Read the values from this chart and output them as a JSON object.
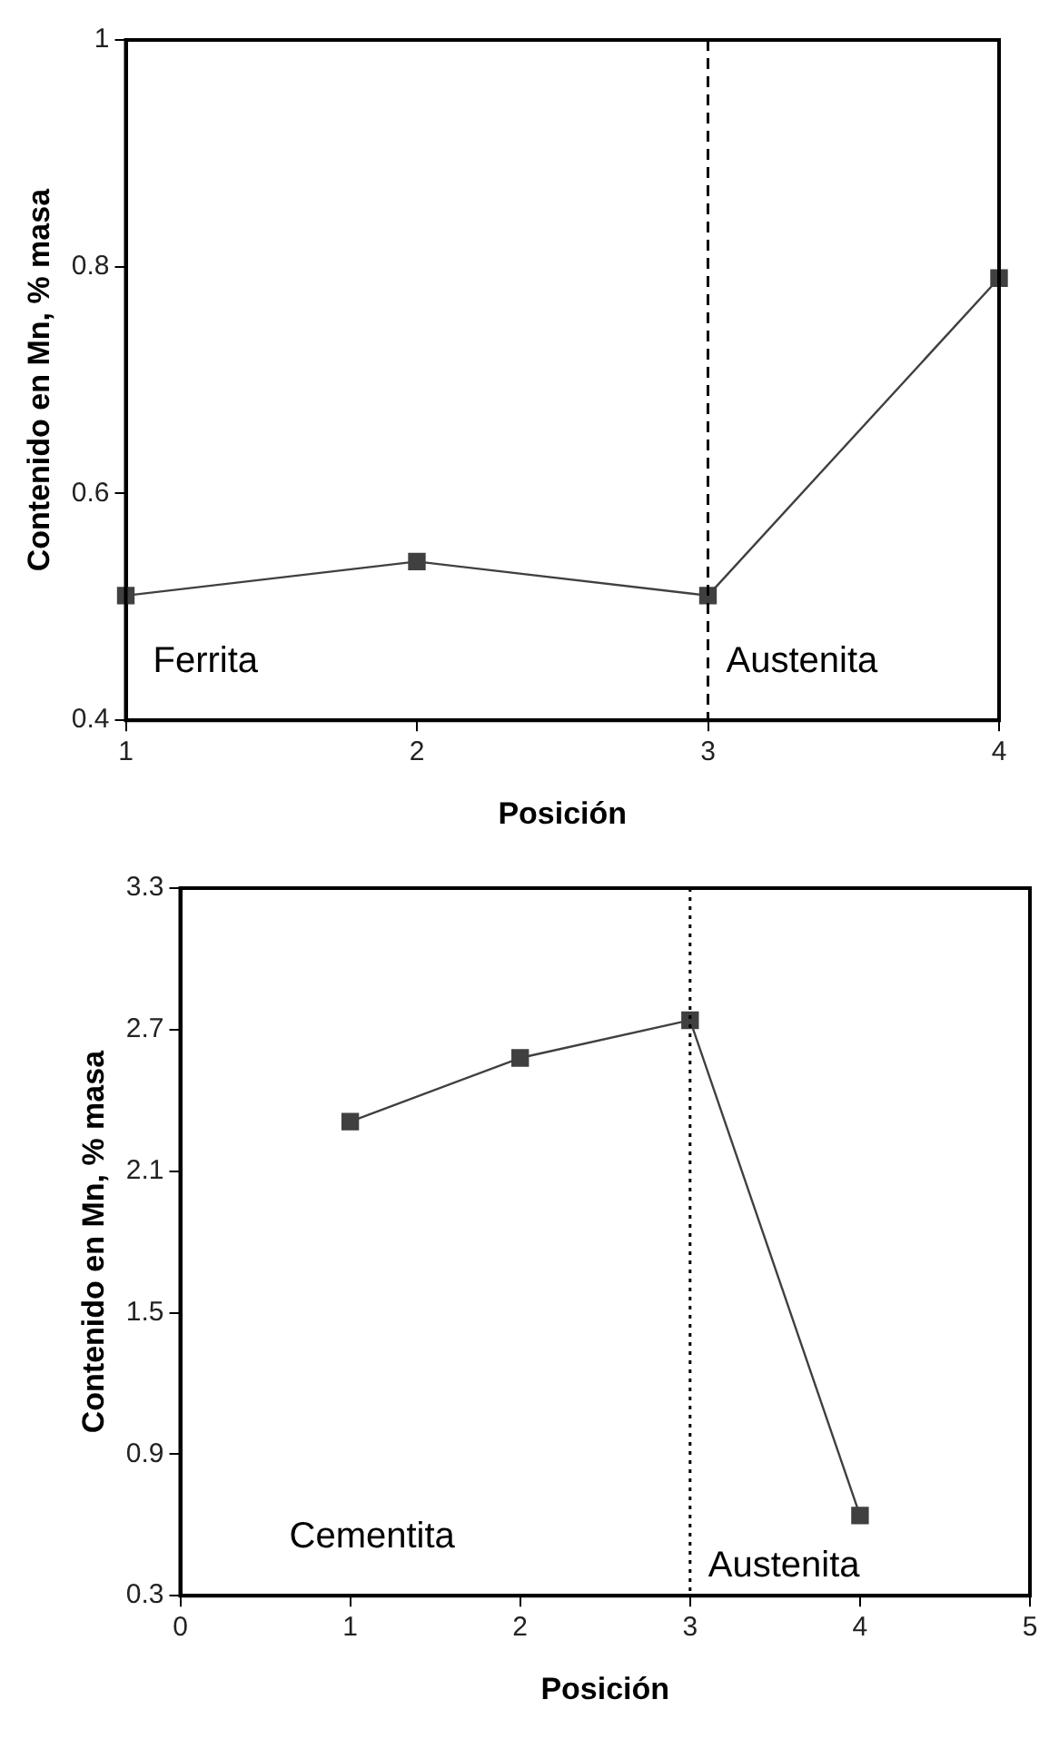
{
  "chart_data": [
    {
      "type": "line",
      "xlabel": "Posición",
      "ylabel": "Contenido en Mn, % masa",
      "x": [
        1,
        2,
        3,
        4
      ],
      "series": [
        {
          "color": "#404040",
          "values": [
            0.51,
            0.54,
            0.51,
            0.79
          ]
        }
      ],
      "xlim": [
        1,
        4
      ],
      "xticks": [
        1,
        2,
        3,
        4
      ],
      "ylim": [
        0.4,
        1
      ],
      "yticks": [
        0.4,
        0.6,
        0.8,
        1
      ],
      "grid": false,
      "legend": false,
      "marker": "square",
      "line_style": "solid",
      "ref_lines": [
        {
          "axis": "x",
          "value": 3,
          "color": "#000000",
          "line_style": "dashed"
        }
      ],
      "annotations": [
        "Ferrita",
        "Austenita"
      ]
    },
    {
      "type": "line",
      "xlabel": "Posición",
      "ylabel": "Contenido en Mn, % masa",
      "x": [
        1,
        2,
        3,
        4
      ],
      "series": [
        {
          "color": "#404040",
          "values": [
            2.31,
            2.58,
            2.74,
            0.64
          ]
        }
      ],
      "xlim": [
        0,
        5
      ],
      "xticks": [
        0,
        1,
        2,
        3,
        4,
        5
      ],
      "ylim": [
        0.3,
        3.3
      ],
      "yticks": [
        0.3,
        0.9,
        1.5,
        2.1,
        2.7,
        3.3
      ],
      "grid": false,
      "legend": false,
      "marker": "square",
      "line_style": "solid",
      "ref_lines": [
        {
          "axis": "x",
          "value": 3,
          "color": "#000000",
          "line_style": "dotted"
        }
      ],
      "annotations": [
        "Cementita",
        "Austenita"
      ]
    }
  ]
}
